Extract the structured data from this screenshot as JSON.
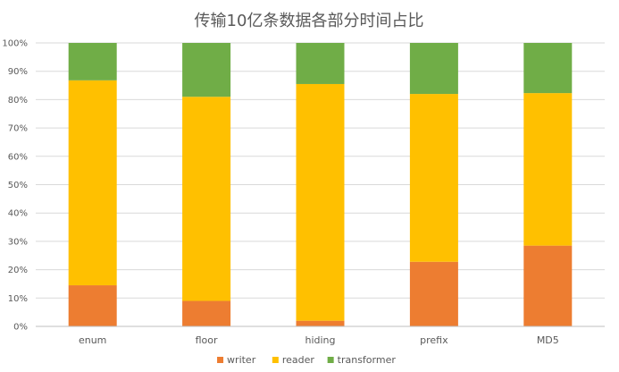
{
  "chart_data": {
    "type": "bar",
    "stacked": "percent",
    "title": "传输10亿条数据各部分时间占比",
    "categories": [
      "enum",
      "floor",
      "hiding",
      "prefix",
      "MD5"
    ],
    "series": [
      {
        "name": "writer",
        "color": "#ED7D31",
        "values": [
          14.5,
          9.0,
          2.0,
          22.8,
          28.5
        ]
      },
      {
        "name": "reader",
        "color": "#FFC000",
        "values": [
          72.3,
          72.0,
          83.5,
          59.2,
          53.8
        ]
      },
      {
        "name": "transformer",
        "color": "#70AD47",
        "values": [
          13.2,
          19.0,
          14.5,
          18.0,
          17.7
        ]
      }
    ],
    "yticks": [
      "0%",
      "10%",
      "20%",
      "30%",
      "40%",
      "50%",
      "60%",
      "70%",
      "80%",
      "90%",
      "100%"
    ],
    "ylim": [
      0,
      100
    ],
    "grid": true,
    "legend_position": "bottom"
  }
}
